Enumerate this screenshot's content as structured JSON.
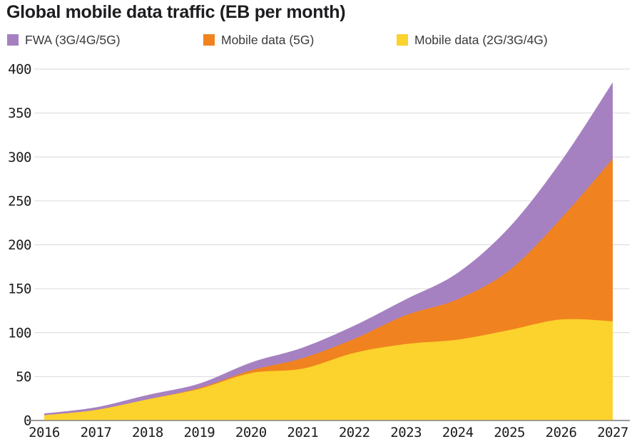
{
  "title": "Global mobile data traffic (EB per month)",
  "legend": [
    {
      "label": "FWA (3G/4G/5G)",
      "color": "#a681c1"
    },
    {
      "label": "Mobile data (5G)",
      "color": "#f0831f"
    },
    {
      "label": "Mobile data (2G/3G/4G)",
      "color": "#fcd22d"
    }
  ],
  "chart_data": {
    "type": "area",
    "stacked": true,
    "title": "Global mobile data traffic (EB per month)",
    "xlabel": "",
    "ylabel": "EB per month",
    "x": [
      "2016",
      "2017",
      "2018",
      "2019",
      "2020",
      "2021",
      "2022",
      "2023",
      "2024",
      "2025",
      "2026",
      "2027"
    ],
    "series": [
      {
        "name": "Mobile data (2G/3G/4G)",
        "color": "#fcd22d",
        "values": [
          6,
          12,
          24,
          36,
          54,
          59,
          77,
          87,
          92,
          103,
          115,
          113
        ]
      },
      {
        "name": "Mobile data (5G)",
        "color": "#f0831f",
        "values": [
          0,
          0,
          0,
          1,
          3,
          12,
          16,
          33,
          46,
          68,
          115,
          185
        ]
      },
      {
        "name": "FWA (3G/4G/5G)",
        "color": "#a681c1",
        "values": [
          2,
          3,
          5,
          5,
          9,
          12,
          15,
          18,
          30,
          49,
          65,
          87
        ]
      }
    ],
    "stack_totals": [
      8,
      15,
      29,
      42,
      66,
      83,
      108,
      138,
      168,
      220,
      295,
      385
    ],
    "ylim": [
      0,
      400
    ],
    "yticks": [
      0,
      50,
      100,
      150,
      200,
      250,
      300,
      350,
      400
    ],
    "grid": true,
    "legend_position": "top",
    "colors": {
      "gridline": "#d9d9d9",
      "axis_line": "#8c8c8c",
      "tick_text": "#1b1b1b"
    }
  }
}
